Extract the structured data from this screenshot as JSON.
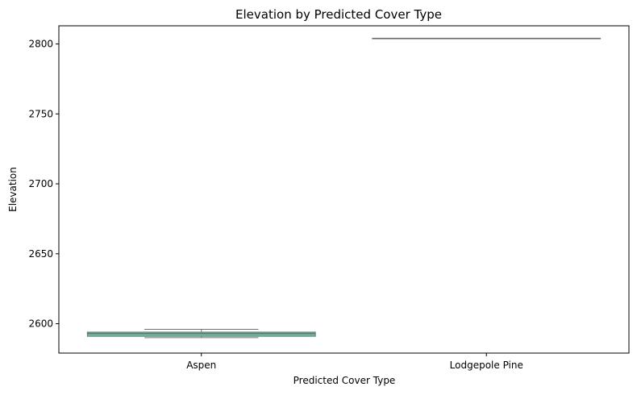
{
  "chart_data": {
    "type": "box",
    "title": "Elevation by Predicted Cover Type",
    "xlabel": "Predicted Cover Type",
    "ylabel": "Elevation",
    "categories": [
      "Aspen",
      "Lodgepole Pine"
    ],
    "ylim": [
      2579,
      2813
    ],
    "yticks": [
      2600,
      2650,
      2700,
      2750,
      2800
    ],
    "grid": false,
    "legend": "none",
    "boxes": [
      {
        "category": "Aspen",
        "whisker_low": 2590,
        "q1": 2591,
        "median": 2593,
        "q3": 2594,
        "whisker_high": 2596,
        "color": "#66c2a5"
      },
      {
        "category": "Lodgepole Pine",
        "whisker_low": 2804,
        "q1": 2804,
        "median": 2804,
        "q3": 2804,
        "whisker_high": 2804,
        "color": "#fc8d62"
      }
    ]
  },
  "colors": {
    "line": "#707070",
    "axis": "#000000",
    "background": "#ffffff"
  }
}
